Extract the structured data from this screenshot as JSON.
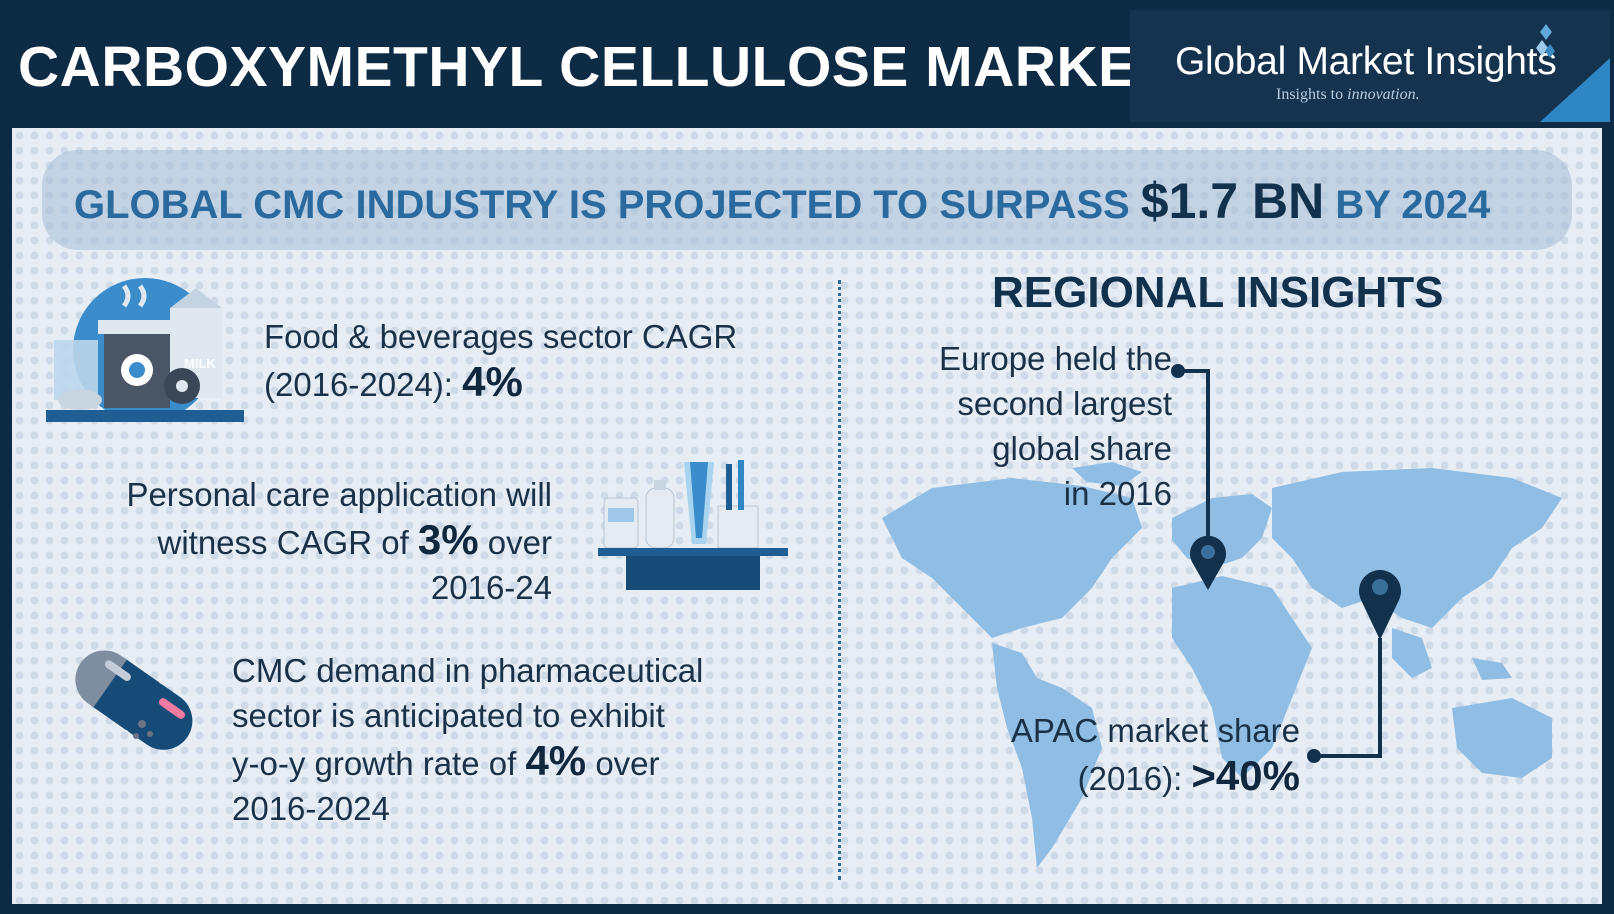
{
  "header": {
    "title": "CARBOXYMETHYL CELLULOSE MARKET",
    "brand_name": "Global Market Insights",
    "brand_tagline_a": "Insights to ",
    "brand_tagline_b": "innovation."
  },
  "banner": {
    "text_a": "GLOBAL CMC INDUSTRY IS PROJECTED TO SURPASS ",
    "text_big": "$1.7 BN",
    "text_b": " BY 2024"
  },
  "food": {
    "line1": "Food & beverages sector CAGR",
    "line2": "(2016-2024): ",
    "value": "4%",
    "milk_label": "MILK"
  },
  "personal_care": {
    "line1": "Personal care application will",
    "line2a": "witness CAGR of ",
    "value": "3%",
    "line2b": " over",
    "line3": "2016-24"
  },
  "pharma": {
    "line1": "CMC demand in pharmaceutical",
    "line2": "sector is anticipated to exhibit",
    "line3a": "y-o-y growth rate of ",
    "value": "4%",
    "line3b": " over",
    "line4": "2016-2024"
  },
  "regional": {
    "title": "REGIONAL INSIGHTS",
    "europe_line1": "Europe held the",
    "europe_line2": "second largest",
    "europe_line3": "global share",
    "europe_line4": "in 2016",
    "apac_line1": "APAC market share",
    "apac_line2": "(2016): ",
    "apac_value": ">40%"
  },
  "colors": {
    "navy": "#0d2b45",
    "accent_blue": "#2a6a9f",
    "map_blue": "#8fbde3",
    "panel_bg": "#e7edf5"
  }
}
